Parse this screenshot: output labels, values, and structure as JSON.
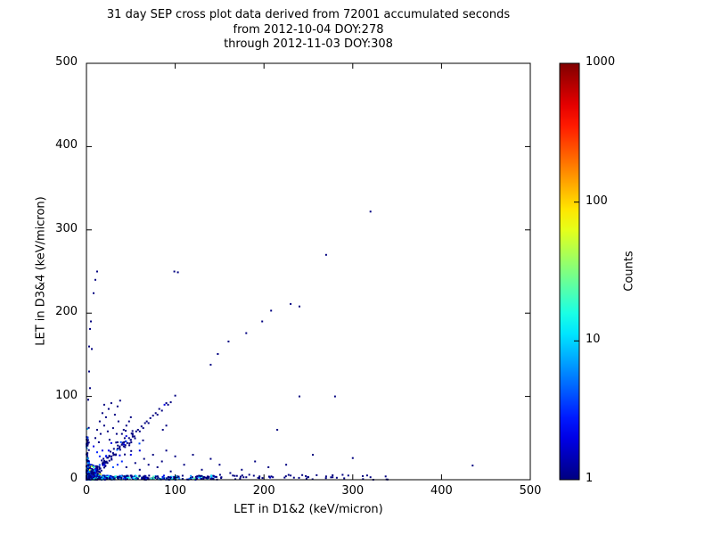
{
  "title": {
    "line1": "31 day SEP cross plot data derived from 72001 accumulated seconds",
    "line2": "from 2012-10-04 DOY:278",
    "line3": "through 2012-11-03 DOY:308"
  },
  "axes": {
    "xlabel": "LET in D1&2 (keV/micron)",
    "ylabel": "LET in D3&4 (keV/micron)"
  },
  "colorbar": {
    "label": "Counts",
    "scale": "log",
    "colormap": "jet",
    "ticks": [
      1000,
      100,
      10,
      1
    ],
    "range": [
      1,
      1000
    ]
  },
  "chart_data": {
    "type": "scatter",
    "title": "31 day SEP cross plot data derived from 72001 accumulated seconds",
    "subtitle1": "from 2012-10-04 DOY:278",
    "subtitle2": "through 2012-11-03 DOY:308",
    "xlabel": "LET in D1&2 (keV/micron)",
    "ylabel": "LET in D3&4 (keV/micron)",
    "xlim": [
      0,
      500
    ],
    "ylim": [
      0,
      500
    ],
    "x_ticks": [
      0,
      100,
      200,
      300,
      400,
      500
    ],
    "y_ticks": [
      0,
      100,
      200,
      300,
      400,
      500
    ],
    "colorbar_ticks": [
      1000,
      100,
      10,
      1
    ],
    "colorbar_label": "Counts",
    "color_scale": "log10 counts, 1 to 1000, jet colormap",
    "marker_size": 2,
    "seed": 20121004,
    "points": [
      [
        320,
        322,
        1
      ],
      [
        270,
        270,
        1
      ],
      [
        240,
        208,
        1
      ],
      [
        230,
        211,
        1
      ],
      [
        208,
        203,
        1
      ],
      [
        198,
        190,
        1
      ],
      [
        180,
        176,
        1
      ],
      [
        160,
        166,
        1
      ],
      [
        148,
        151,
        1
      ],
      [
        140,
        138,
        1
      ],
      [
        103,
        249,
        1
      ],
      [
        99,
        250,
        1
      ],
      [
        12,
        250,
        1
      ],
      [
        10,
        240,
        1
      ],
      [
        8,
        224,
        1
      ],
      [
        5,
        190,
        1
      ],
      [
        4,
        181,
        1
      ],
      [
        3,
        160,
        1
      ],
      [
        6,
        157,
        1
      ],
      [
        3,
        130,
        1
      ],
      [
        4,
        110,
        1
      ],
      [
        2,
        96,
        1
      ],
      [
        280,
        100,
        1
      ],
      [
        100,
        101,
        1
      ],
      [
        240,
        100,
        1
      ],
      [
        435,
        17,
        1
      ],
      [
        300,
        26,
        1
      ],
      [
        255,
        30,
        1
      ],
      [
        225,
        18,
        1
      ],
      [
        205,
        15,
        1
      ],
      [
        190,
        22,
        1
      ],
      [
        175,
        12,
        1
      ],
      [
        162,
        8,
        1
      ],
      [
        150,
        18,
        1
      ],
      [
        140,
        25,
        1
      ],
      [
        130,
        12,
        1
      ],
      [
        120,
        30,
        1
      ],
      [
        110,
        18,
        1
      ],
      [
        337,
        4,
        1
      ],
      [
        320,
        3,
        1
      ],
      [
        295,
        5,
        1
      ],
      [
        270,
        4,
        1
      ],
      [
        250,
        3,
        1
      ],
      [
        230,
        5,
        1
      ],
      [
        210,
        3,
        1
      ],
      [
        195,
        4,
        1
      ],
      [
        180,
        3,
        1
      ],
      [
        165,
        5,
        1
      ],
      [
        152,
        3,
        1
      ],
      [
        215,
        60,
        1
      ],
      [
        30,
        32,
        1
      ],
      [
        33,
        30,
        1
      ],
      [
        35,
        37,
        1
      ],
      [
        38,
        36,
        1
      ],
      [
        40,
        42,
        1
      ],
      [
        42,
        40,
        1
      ],
      [
        44,
        46,
        1
      ],
      [
        46,
        44,
        1
      ],
      [
        48,
        50,
        1
      ],
      [
        50,
        48,
        1
      ],
      [
        52,
        54,
        1
      ],
      [
        54,
        52,
        1
      ],
      [
        56,
        58,
        1
      ],
      [
        58,
        60,
        1
      ],
      [
        60,
        58,
        1
      ],
      [
        62,
        64,
        1
      ],
      [
        64,
        62,
        1
      ],
      [
        66,
        68,
        1
      ],
      [
        68,
        70,
        1
      ],
      [
        70,
        68,
        1
      ],
      [
        72,
        74,
        1
      ],
      [
        75,
        77,
        1
      ],
      [
        78,
        80,
        1
      ],
      [
        80,
        78,
        1
      ],
      [
        82,
        85,
        1
      ],
      [
        85,
        83,
        1
      ],
      [
        88,
        90,
        2
      ],
      [
        90,
        92,
        1
      ],
      [
        92,
        90,
        1
      ],
      [
        95,
        93,
        1
      ],
      [
        86,
        60,
        1
      ],
      [
        90,
        65,
        1
      ],
      [
        8,
        40,
        2
      ],
      [
        10,
        50,
        1
      ],
      [
        12,
        60,
        1
      ],
      [
        14,
        45,
        1
      ],
      [
        15,
        70,
        1
      ],
      [
        16,
        55,
        1
      ],
      [
        18,
        80,
        1
      ],
      [
        20,
        65,
        1
      ],
      [
        20,
        90,
        1
      ],
      [
        22,
        75,
        1
      ],
      [
        24,
        58,
        1
      ],
      [
        25,
        85,
        1
      ],
      [
        26,
        48,
        1
      ],
      [
        28,
        92,
        1
      ],
      [
        30,
        62,
        1
      ],
      [
        32,
        78,
        1
      ],
      [
        34,
        55,
        1
      ],
      [
        35,
        88,
        1
      ],
      [
        36,
        70,
        1
      ],
      [
        38,
        95,
        1
      ],
      [
        25,
        35,
        2
      ],
      [
        28,
        44,
        2
      ],
      [
        18,
        35,
        2
      ],
      [
        15,
        28,
        3
      ],
      [
        12,
        33,
        3
      ],
      [
        22,
        28,
        2
      ],
      [
        35,
        45,
        1
      ],
      [
        40,
        55,
        1
      ],
      [
        42,
        60,
        1
      ],
      [
        45,
        65,
        1
      ],
      [
        48,
        70,
        1
      ],
      [
        50,
        75,
        1
      ],
      [
        45,
        15,
        1
      ],
      [
        55,
        20,
        1
      ],
      [
        60,
        12,
        1
      ],
      [
        65,
        25,
        1
      ],
      [
        70,
        18,
        1
      ],
      [
        75,
        30,
        1
      ],
      [
        80,
        15,
        1
      ],
      [
        85,
        22,
        1
      ],
      [
        90,
        35,
        1
      ],
      [
        95,
        10,
        1
      ],
      [
        100,
        28,
        1
      ],
      [
        60,
        35,
        2
      ],
      [
        50,
        30,
        2
      ],
      [
        40,
        22,
        3
      ],
      [
        35,
        18,
        3
      ],
      [
        30,
        15,
        4
      ]
    ],
    "clusters": [
      {
        "type": "gauss",
        "cx": 2,
        "cy": 2,
        "sx": 6,
        "sy": 6,
        "n": 650,
        "cmax": 80
      },
      {
        "type": "band-x",
        "x0": 0,
        "x1": 150,
        "ymax": 5,
        "n": 420,
        "cmax": 25,
        "pow": 2.2
      },
      {
        "type": "band-x",
        "x0": 100,
        "x1": 340,
        "ymax": 6,
        "n": 45,
        "cmax": 2,
        "pow": 1
      },
      {
        "type": "band-y",
        "y0": 0,
        "y1": 65,
        "xmax": 3,
        "n": 90,
        "cmax": 10,
        "pow": 2
      },
      {
        "type": "diag",
        "t0": 3,
        "t1": 55,
        "jitter": 0.4,
        "n": 140,
        "cmax": 6
      }
    ]
  }
}
